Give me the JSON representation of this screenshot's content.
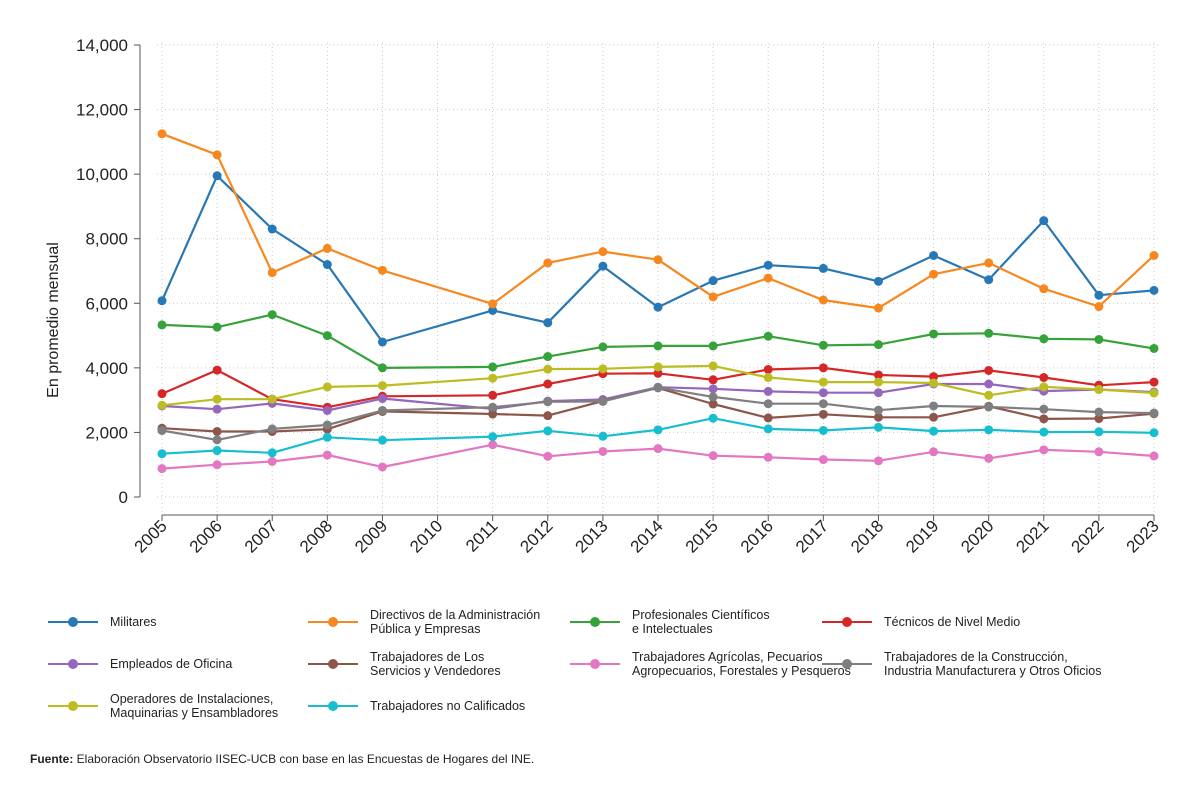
{
  "chart_data": {
    "type": "line",
    "ylabel": "En promedio mensual",
    "xlabel": "",
    "ylim": [
      0,
      14000
    ],
    "yticks": [
      0,
      2000,
      4000,
      6000,
      8000,
      10000,
      12000,
      14000
    ],
    "ytick_labels": [
      "0",
      "2,000",
      "4,000",
      "6,000",
      "8,000",
      "10,000",
      "12,000",
      "14,000"
    ],
    "x": [
      2005,
      2006,
      2007,
      2008,
      2009,
      2010,
      2011,
      2012,
      2013,
      2014,
      2015,
      2016,
      2017,
      2018,
      2019,
      2020,
      2021,
      2022,
      2023
    ],
    "xtick_labels": [
      "2005",
      "2006",
      "2007",
      "2008",
      "2009",
      "2010",
      "2011",
      "2012",
      "2013",
      "2014",
      "2015",
      "2016",
      "2017",
      "2018",
      "2019",
      "2020",
      "2021",
      "2022",
      "2023"
    ],
    "grid": true,
    "legend_position": "bottom",
    "series": [
      {
        "name": "Militares",
        "color": "#2878b5",
        "values": [
          6080,
          9950,
          8300,
          7200,
          4800,
          null,
          5780,
          5400,
          7150,
          5880,
          6700,
          7180,
          7080,
          6680,
          7480,
          6730,
          8560,
          6250,
          6400
        ]
      },
      {
        "name": "Directivos de la Administración\nPública y Empresas",
        "color": "#f7881f",
        "values": [
          11250,
          10600,
          6950,
          7700,
          7020,
          null,
          5980,
          7250,
          7600,
          7350,
          6200,
          6780,
          6100,
          5850,
          6900,
          7250,
          6450,
          5900,
          7480
        ]
      },
      {
        "name": "Profesionales Científicos\ne Intelectuales",
        "color": "#35a33a",
        "values": [
          5330,
          5260,
          5650,
          5000,
          4000,
          null,
          4030,
          4350,
          4650,
          4680,
          4680,
          4980,
          4700,
          4720,
          5050,
          5070,
          4900,
          4880,
          4600
        ]
      },
      {
        "name": "Técnicos de Nivel Medio",
        "color": "#d62728",
        "values": [
          3200,
          3930,
          3030,
          2780,
          3120,
          null,
          3150,
          3500,
          3820,
          3830,
          3630,
          3950,
          4000,
          3780,
          3730,
          3920,
          3700,
          3460,
          3560
        ]
      },
      {
        "name": "Empleados de Oficina",
        "color": "#9467bd",
        "values": [
          2820,
          2720,
          2900,
          2680,
          3050,
          null,
          2730,
          2970,
          3020,
          3400,
          3350,
          3270,
          3230,
          3230,
          3500,
          3500,
          3280,
          3330,
          3250
        ]
      },
      {
        "name": "Trabajadores de Los\nServicios y Vendedores",
        "color": "#8c564b",
        "values": [
          2130,
          2030,
          2030,
          2100,
          2650,
          null,
          2570,
          2520,
          2970,
          3380,
          2880,
          2450,
          2560,
          2470,
          2470,
          2810,
          2420,
          2430,
          2580
        ]
      },
      {
        "name": "Trabajadores Agrícolas, Pecuarios\nAgropecuarios, Forestales y Pesqueros",
        "color": "#e377c2",
        "values": [
          880,
          1000,
          1100,
          1300,
          930,
          null,
          1620,
          1260,
          1410,
          1500,
          1280,
          1230,
          1160,
          1120,
          1400,
          1200,
          1460,
          1400,
          1270
        ]
      },
      {
        "name": "Trabajadores de la Construcción,\nIndustria Manufacturera y Otros Oficios",
        "color": "#7f7f7f",
        "values": [
          2060,
          1770,
          2110,
          2230,
          2680,
          null,
          2780,
          2950,
          2960,
          3390,
          3100,
          2890,
          2890,
          2690,
          2820,
          2790,
          2720,
          2630,
          2600
        ]
      },
      {
        "name": "Operadores de Instalaciones,\nMaquinarias y Ensambladores",
        "color": "#bcbd22",
        "values": [
          2840,
          3030,
          3030,
          3410,
          3450,
          null,
          3680,
          3960,
          3970,
          4030,
          4060,
          3700,
          3560,
          3560,
          3530,
          3150,
          3410,
          3330,
          3220
        ]
      },
      {
        "name": "Trabajadores no Calificados",
        "color": "#17becf",
        "values": [
          1340,
          1440,
          1370,
          1850,
          1760,
          null,
          1870,
          2050,
          1880,
          2080,
          2440,
          2110,
          2060,
          2160,
          2040,
          2080,
          2010,
          2020,
          1990
        ]
      }
    ]
  },
  "source": {
    "label": "Fuente:",
    "text": " Elaboración Observatorio IISEC-UCB con base en las Encuestas de Hogares del INE."
  }
}
